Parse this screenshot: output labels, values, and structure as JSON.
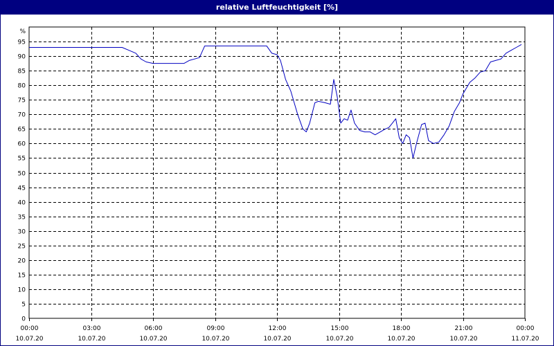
{
  "window": {
    "title": "relative Luftfeuchtigkeit [%]"
  },
  "chart_data": {
    "type": "line",
    "title": "relative Luftfeuchtigkeit [%]",
    "ylabel": "%",
    "xlabel": "",
    "ylim": [
      0,
      100
    ],
    "yticks": [
      0,
      5,
      10,
      15,
      20,
      25,
      30,
      35,
      40,
      45,
      50,
      55,
      60,
      65,
      70,
      75,
      80,
      85,
      90,
      95
    ],
    "xlim": [
      "10.07.20 00:00",
      "11.07.20 00:00"
    ],
    "xticks": [
      {
        "time": "00:00",
        "date": "10.07.20"
      },
      {
        "time": "03:00",
        "date": "10.07.20"
      },
      {
        "time": "06:00",
        "date": "10.07.20"
      },
      {
        "time": "09:00",
        "date": "10.07.20"
      },
      {
        "time": "12:00",
        "date": "10.07.20"
      },
      {
        "time": "15:00",
        "date": "10.07.20"
      },
      {
        "time": "18:00",
        "date": "10.07.20"
      },
      {
        "time": "21:00",
        "date": "10.07.20"
      },
      {
        "time": "00:00",
        "date": "11.07.20"
      }
    ],
    "grid": true,
    "colors": {
      "line": "#0000c0",
      "title_bar": "#000080",
      "grid": "#000000"
    },
    "series": [
      {
        "x": [
          "10.07.20 00:00",
          "10.07.20 01:00",
          "10.07.20 02:00",
          "10.07.20 03:00",
          "10.07.20 04:00",
          "10.07.20 04:30",
          "10.07.20 04:50",
          "10.07.20 05:10",
          "10.07.20 05:25",
          "10.07.20 05:40",
          "10.07.20 06:00",
          "10.07.20 06:30",
          "10.07.20 07:00",
          "10.07.20 07:30",
          "10.07.20 07:45",
          "10.07.20 08:00",
          "10.07.20 08:15",
          "10.07.20 08:30",
          "10.07.20 09:00",
          "10.07.20 10:00",
          "10.07.20 11:00",
          "10.07.20 11:30",
          "10.07.20 11:45",
          "10.07.20 12:00",
          "10.07.20 12:10",
          "10.07.20 12:25",
          "10.07.20 12:40",
          "10.07.20 13:00",
          "10.07.20 13:15",
          "10.07.20 13:25",
          "10.07.20 13:35",
          "10.07.20 13:50",
          "10.07.20 14:00",
          "10.07.20 14:20",
          "10.07.20 14:35",
          "10.07.20 14:45",
          "10.07.20 14:55",
          "10.07.20 15:05",
          "10.07.20 15:15",
          "10.07.20 15:25",
          "10.07.20 15:35",
          "10.07.20 15:45",
          "10.07.20 16:00",
          "10.07.20 16:15",
          "10.07.20 16:30",
          "10.07.20 16:45",
          "10.07.20 17:00",
          "10.07.20 17:15",
          "10.07.20 17:25",
          "10.07.20 17:35",
          "10.07.20 17:45",
          "10.07.20 17:55",
          "10.07.20 18:05",
          "10.07.20 18:15",
          "10.07.20 18:25",
          "10.07.20 18:35",
          "10.07.20 18:45",
          "10.07.20 19:00",
          "10.07.20 19:10",
          "10.07.20 19:20",
          "10.07.20 19:35",
          "10.07.20 19:50",
          "10.07.20 20:05",
          "10.07.20 20:20",
          "10.07.20 20:35",
          "10.07.20 20:50",
          "10.07.20 21:00",
          "10.07.20 21:20",
          "10.07.20 21:35",
          "10.07.20 21:50",
          "10.07.20 22:05",
          "10.07.20 22:20",
          "10.07.20 22:35",
          "10.07.20 22:50",
          "10.07.20 23:05",
          "10.07.20 23:20",
          "10.07.20 23:35",
          "10.07.20 23:50"
        ],
        "y": [
          93,
          93,
          93,
          93,
          93,
          93,
          92,
          91,
          89,
          88,
          87.5,
          87.5,
          87.5,
          87.5,
          88.5,
          89,
          89.5,
          93.5,
          93.5,
          93.5,
          93.5,
          93.5,
          91,
          90.5,
          88.5,
          82,
          78,
          70,
          65,
          64,
          67,
          74,
          74.5,
          74,
          73.5,
          82,
          76,
          67,
          68.5,
          68,
          71.5,
          67,
          64.5,
          64,
          64,
          63,
          64,
          65,
          65.5,
          67,
          68.5,
          62,
          60,
          63,
          62,
          55,
          60,
          66.5,
          67,
          61,
          60,
          60.5,
          63,
          66,
          71,
          74,
          77,
          81,
          82.5,
          84.5,
          85,
          88,
          88.5,
          89,
          91,
          92,
          93,
          94
        ]
      }
    ]
  }
}
